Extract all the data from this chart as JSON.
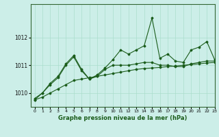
{
  "title": "Graphe pression niveau de la mer (hPa)",
  "bg_color": "#cceee8",
  "grid_color": "#aaddcc",
  "line_color": "#1a5c1a",
  "xlim": [
    -0.5,
    23
  ],
  "ylim": [
    1009.5,
    1013.2
  ],
  "yticks": [
    1010,
    1011,
    1012
  ],
  "xticks": [
    0,
    1,
    2,
    3,
    4,
    5,
    6,
    7,
    8,
    9,
    10,
    11,
    12,
    13,
    14,
    15,
    16,
    17,
    18,
    19,
    20,
    21,
    22,
    23
  ],
  "series_flat": [
    1009.75,
    1009.85,
    1010.0,
    1010.15,
    1010.3,
    1010.45,
    1010.5,
    1010.55,
    1010.6,
    1010.65,
    1010.7,
    1010.75,
    1010.8,
    1010.85,
    1010.88,
    1010.9,
    1010.92,
    1010.95,
    1010.97,
    1011.0,
    1011.02,
    1011.05,
    1011.08,
    1011.1
  ],
  "series_mid": [
    1009.8,
    1010.0,
    1010.3,
    1010.55,
    1011.0,
    1011.3,
    1010.8,
    1010.5,
    1010.6,
    1010.85,
    1011.0,
    1011.0,
    1011.0,
    1011.05,
    1011.1,
    1011.1,
    1011.0,
    1011.0,
    1010.95,
    1010.95,
    1011.05,
    1011.1,
    1011.15,
    1011.15
  ],
  "series_volatile": [
    1009.75,
    1010.0,
    1010.35,
    1010.6,
    1011.05,
    1011.35,
    1010.85,
    1010.5,
    1010.65,
    1010.9,
    1011.2,
    1011.55,
    1011.4,
    1011.55,
    1011.7,
    1012.7,
    1011.25,
    1011.4,
    1011.15,
    1011.1,
    1011.55,
    1011.65,
    1011.85,
    1011.2
  ]
}
